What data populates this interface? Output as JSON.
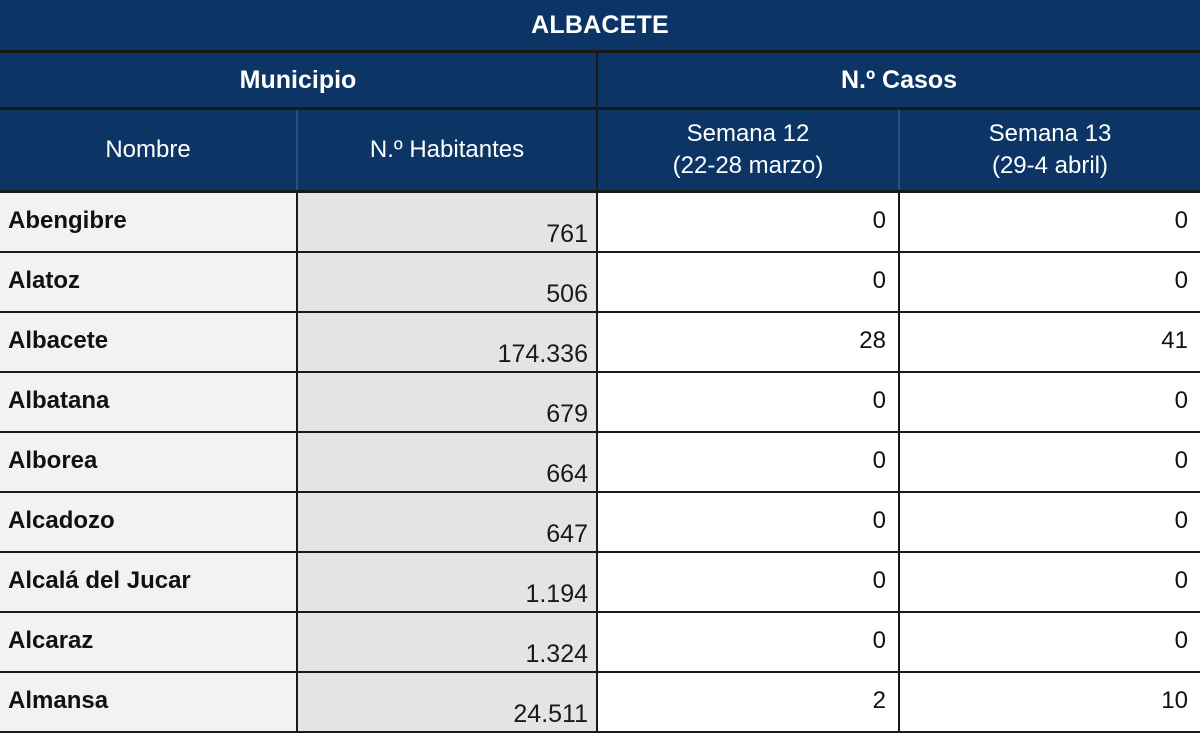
{
  "table": {
    "title": "ALBACETE",
    "group_headers": {
      "municipio": "Municipio",
      "casos": "N.º Casos"
    },
    "columns": {
      "nombre": "Nombre",
      "habitantes": "N.º Habitantes",
      "semana12": {
        "line1": "Semana 12",
        "line2": "(22-28 marzo)"
      },
      "semana13": {
        "line1": "Semana 13",
        "line2": "(29-4 abril)"
      }
    },
    "rows": [
      {
        "nombre": "Abengibre",
        "habitantes": "761",
        "semana12": "0",
        "semana13": "0"
      },
      {
        "nombre": "Alatoz",
        "habitantes": "506",
        "semana12": "0",
        "semana13": "0"
      },
      {
        "nombre": "Albacete",
        "habitantes": "174.336",
        "semana12": "28",
        "semana13": "41"
      },
      {
        "nombre": "Albatana",
        "habitantes": "679",
        "semana12": "0",
        "semana13": "0"
      },
      {
        "nombre": "Alborea",
        "habitantes": "664",
        "semana12": "0",
        "semana13": "0"
      },
      {
        "nombre": "Alcadozo",
        "habitantes": "647",
        "semana12": "0",
        "semana13": "0"
      },
      {
        "nombre": "Alcalá  del Jucar",
        "habitantes": "1.194",
        "semana12": "0",
        "semana13": "0"
      },
      {
        "nombre": "Alcaraz",
        "habitantes": "1.324",
        "semana12": "0",
        "semana13": "0"
      },
      {
        "nombre": "Almansa",
        "habitantes": "24.511",
        "semana12": "2",
        "semana13": "10"
      }
    ]
  },
  "colors": {
    "header_navy": "#0c3566",
    "row_name_bg": "#f2f2f2",
    "row_hab_bg": "#e4e4e4"
  }
}
